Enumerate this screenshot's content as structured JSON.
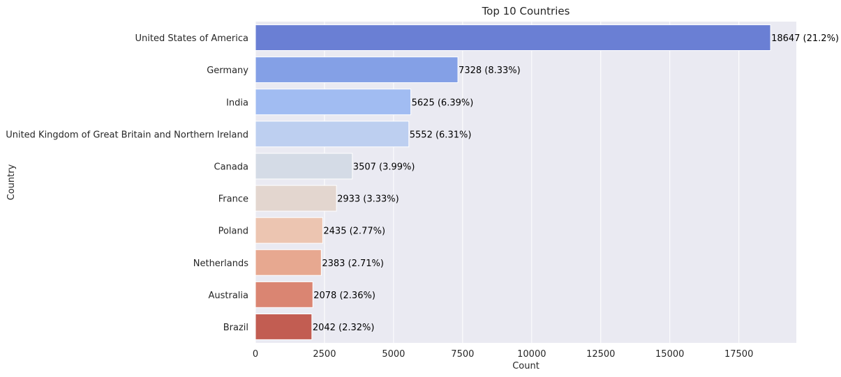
{
  "chart_data": {
    "type": "bar",
    "orientation": "horizontal",
    "title": "Top 10 Countries",
    "xlabel": "Count",
    "ylabel": "Country",
    "categories": [
      "United States of America",
      "Germany",
      "India",
      "United Kingdom of Great Britain and Northern Ireland",
      "Canada",
      "France",
      "Poland",
      "Netherlands",
      "Australia",
      "Brazil"
    ],
    "values": [
      18647,
      7328,
      5625,
      5552,
      3507,
      2933,
      2435,
      2383,
      2078,
      2042
    ],
    "data_labels": [
      "18647 (21.2%)",
      "7328 (8.33%)",
      "5625 (6.39%)",
      "5552 (6.31%)",
      "3507 (3.99%)",
      "2933 (3.33%)",
      "2435 (2.77%)",
      "2383 (2.71%)",
      "2078 (2.36%)",
      "2042 (2.32%)"
    ],
    "colors": [
      "#6a7fd4",
      "#84a0e6",
      "#a1bcf2",
      "#bdcff0",
      "#d4dbe6",
      "#e3d6cf",
      "#ecc5b1",
      "#e7a890",
      "#da8572",
      "#c25d52"
    ],
    "xlim": [
      0,
      19580
    ],
    "xticks": [
      0,
      2500,
      5000,
      7500,
      10000,
      12500,
      15000,
      17500
    ],
    "grid": true,
    "background": "#eaeaf2",
    "gridline_color": "#ffffff"
  }
}
